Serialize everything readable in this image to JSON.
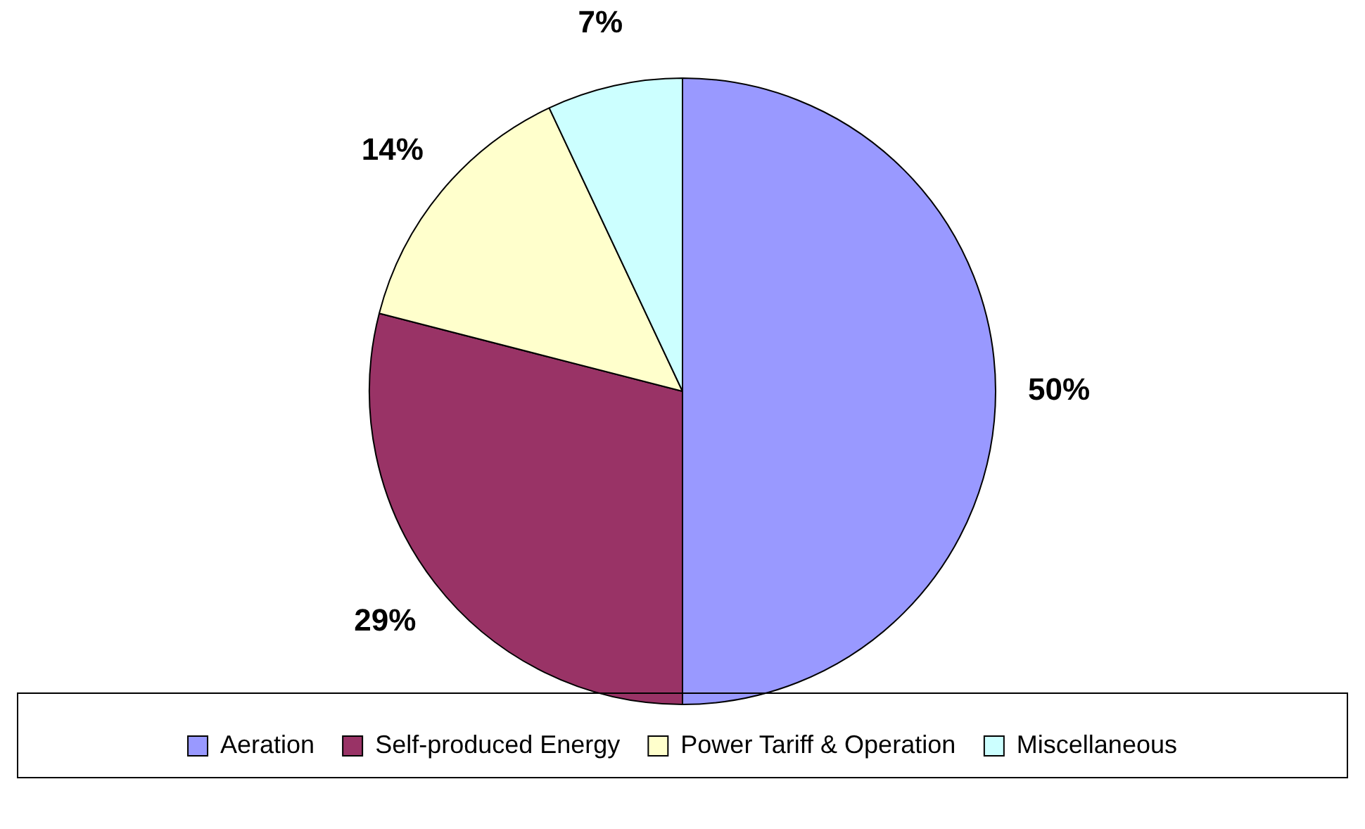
{
  "chart_data": {
    "type": "pie",
    "categories": [
      "Aeration",
      "Self-produced Energy",
      "Power Tariff & Operation",
      "Miscellaneous"
    ],
    "values": [
      50,
      29,
      14,
      7
    ],
    "colors": [
      "#9999ff",
      "#993366",
      "#ffffcc",
      "#ccffff"
    ],
    "value_labels": [
      "50%",
      "29%",
      "14%",
      "7%"
    ],
    "legend": "bottom"
  }
}
